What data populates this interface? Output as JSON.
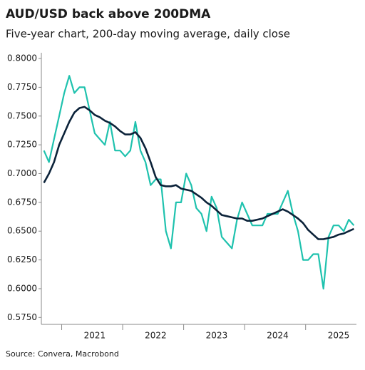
{
  "chart_data": {
    "type": "line",
    "title": "AUD/USD back above 200DMA",
    "subtitle": "Five-year chart, 200-day moving average, daily close",
    "source": "Source: Convera, Macrobond",
    "categories": [
      null,
      null,
      null,
      null,
      null,
      null,
      null,
      null,
      null,
      null,
      "2021",
      null,
      null,
      null,
      null,
      null,
      null,
      null,
      null,
      null,
      null,
      null,
      "2022",
      null,
      null,
      null,
      null,
      null,
      null,
      null,
      null,
      null,
      null,
      null,
      "2023",
      null,
      null,
      null,
      null,
      null,
      null,
      null,
      null,
      null,
      null,
      null,
      "2024",
      null,
      null,
      null,
      null,
      null,
      null,
      null,
      null,
      null,
      null,
      null,
      "2025",
      null,
      null,
      null
    ],
    "series": [
      {
        "color": "#1fc2ae",
        "values": [
          0.72,
          0.71,
          0.73,
          0.75,
          0.77,
          0.785,
          0.77,
          0.775,
          0.775,
          0.755,
          0.735,
          0.73,
          0.725,
          0.745,
          0.72,
          0.72,
          0.715,
          0.72,
          0.745,
          0.72,
          0.71,
          0.69,
          0.695,
          0.695,
          0.65,
          0.635,
          0.675,
          0.675,
          0.7,
          0.69,
          0.67,
          0.665,
          0.65,
          0.68,
          0.67,
          0.645,
          0.64,
          0.635,
          0.66,
          0.675,
          0.665,
          0.655,
          0.655,
          0.655,
          0.665,
          0.665,
          0.665,
          0.675,
          0.685,
          0.665,
          0.65,
          0.625,
          0.625,
          0.63,
          0.63,
          0.6,
          0.645,
          0.655,
          0.655,
          0.65,
          0.66,
          0.655
        ]
      },
      {
        "color": "#0b2239",
        "values": [
          0.692,
          0.7,
          0.71,
          0.725,
          0.735,
          0.745,
          0.753,
          0.757,
          0.758,
          0.755,
          0.751,
          0.749,
          0.746,
          0.744,
          0.741,
          0.737,
          0.734,
          0.734,
          0.736,
          0.731,
          0.722,
          0.71,
          0.697,
          0.69,
          0.689,
          0.689,
          0.69,
          0.687,
          0.686,
          0.685,
          0.682,
          0.679,
          0.675,
          0.672,
          0.668,
          0.664,
          0.663,
          0.662,
          0.661,
          0.661,
          0.659,
          0.659,
          0.66,
          0.661,
          0.663,
          0.665,
          0.667,
          0.669,
          0.667,
          0.664,
          0.661,
          0.657,
          0.651,
          0.647,
          0.643,
          0.643,
          0.644,
          0.645,
          0.647,
          0.648,
          0.65,
          0.652
        ]
      }
    ],
    "ylim": [
      0.569,
      0.805
    ],
    "yticks": [
      {
        "value": 0.575,
        "label": "0.5750"
      },
      {
        "value": 0.6,
        "label": "0.6000"
      },
      {
        "value": 0.625,
        "label": "0.6250"
      },
      {
        "value": 0.65,
        "label": "0.6500"
      },
      {
        "value": 0.675,
        "label": "0.6750"
      },
      {
        "value": 0.7,
        "label": "0.7000"
      },
      {
        "value": 0.725,
        "label": "0.7250"
      },
      {
        "value": 0.75,
        "label": "0.7500"
      },
      {
        "value": 0.775,
        "label": "0.7750"
      },
      {
        "value": 0.8,
        "label": "0.8000"
      }
    ],
    "grid": false
  }
}
